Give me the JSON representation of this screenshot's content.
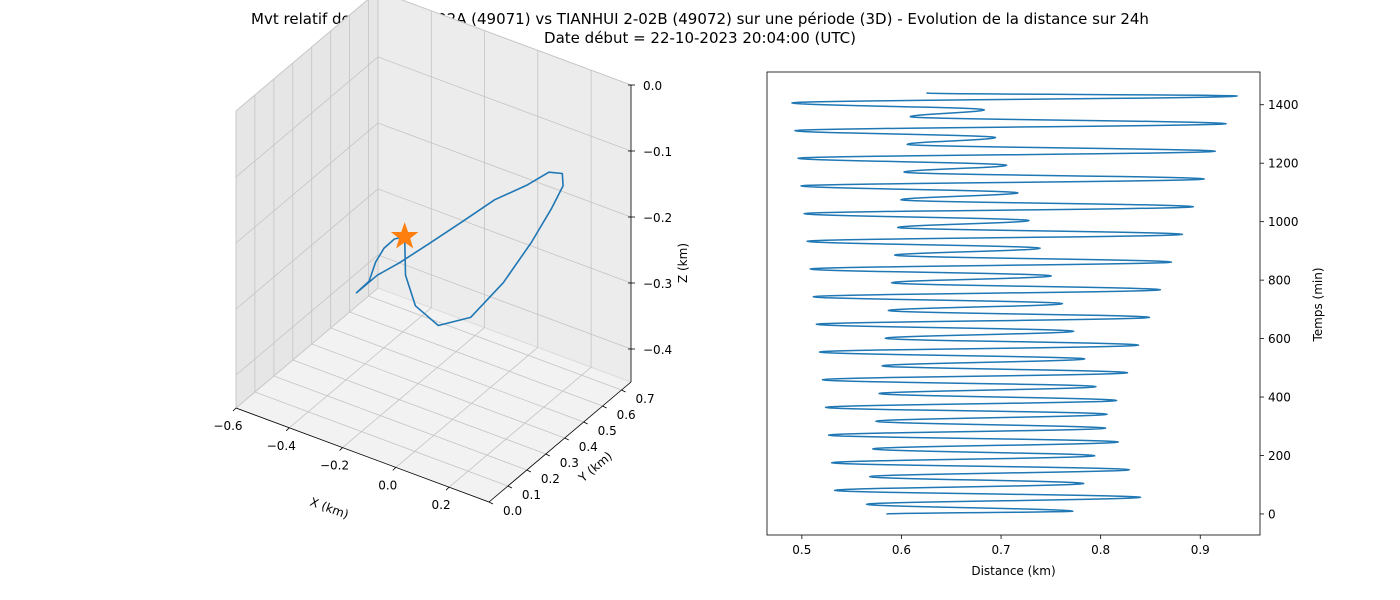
{
  "figure": {
    "title": "Mvt relatif de TIANHUI 2-02A (49071) vs TIANHUI 2-02B (49072) sur une période (3D) - Evolution de la distance sur 24h",
    "subtitle": "Date début = 22-10-2023 20:04:00 (UTC)"
  },
  "chart_data": [
    {
      "type": "line3d",
      "xlabel": "X (km)",
      "ylabel": "Y (km)",
      "zlabel": "Z (km)",
      "xlim": [
        -0.6,
        0.35
      ],
      "ylim": [
        0.0,
        0.75
      ],
      "zlim": [
        -0.45,
        0.0
      ],
      "x_ticks": [
        -0.6,
        -0.4,
        -0.2,
        0.0,
        0.2
      ],
      "x_tick_labels": [
        "−0.6",
        "−0.4",
        "−0.2",
        "0.0",
        "0.2"
      ],
      "y_ticks": [
        0.0,
        0.1,
        0.2,
        0.3,
        0.4,
        0.5,
        0.6,
        0.7
      ],
      "y_tick_labels": [
        "0.0",
        "0.1",
        "0.2",
        "0.3",
        "0.4",
        "0.5",
        "0.6",
        "0.7"
      ],
      "z_ticks": [
        -0.4,
        -0.3,
        -0.2,
        -0.1,
        0.0
      ],
      "z_tick_labels": [
        "−0.4",
        "−0.3",
        "−0.2",
        "−0.1",
        "0.0"
      ],
      "grid": true,
      "series": [
        {
          "color": "#1f77b4",
          "x": [
            -0.18,
            -0.24,
            -0.3,
            -0.36,
            -0.42,
            -0.5,
            -0.56,
            -0.58,
            -0.56,
            -0.5,
            -0.4,
            -0.28,
            -0.14,
            0.0,
            0.12,
            0.22,
            0.28,
            0.3,
            0.29,
            0.24,
            0.16,
            0.06,
            -0.04,
            -0.12,
            -0.18
          ],
          "y": [
            0.3,
            0.33,
            0.36,
            0.4,
            0.45,
            0.52,
            0.58,
            0.64,
            0.69,
            0.72,
            0.74,
            0.74,
            0.72,
            0.69,
            0.64,
            0.57,
            0.49,
            0.4,
            0.31,
            0.23,
            0.17,
            0.14,
            0.16,
            0.22,
            0.3
          ],
          "z": [
            -0.2,
            -0.22,
            -0.25,
            -0.29,
            -0.34,
            -0.38,
            -0.41,
            -0.42,
            -0.41,
            -0.39,
            -0.35,
            -0.3,
            -0.24,
            -0.19,
            -0.14,
            -0.11,
            -0.1,
            -0.11,
            -0.14,
            -0.19,
            -0.24,
            -0.26,
            -0.25,
            -0.23,
            -0.2
          ]
        }
      ],
      "marker": {
        "shape": "star",
        "color": "#ff7f0e",
        "x": -0.18,
        "y": 0.3,
        "z": -0.2
      }
    },
    {
      "type": "line",
      "xlabel": "Distance (km)",
      "ylabel": "Temps (min)",
      "xlim": [
        0.465,
        0.96
      ],
      "ylim": [
        -72,
        1512
      ],
      "x_ticks": [
        0.5,
        0.6,
        0.7,
        0.8,
        0.9
      ],
      "x_tick_labels": [
        "0.5",
        "0.6",
        "0.7",
        "0.8",
        "0.9"
      ],
      "y_ticks": [
        0,
        200,
        400,
        600,
        800,
        1000,
        1200,
        1400
      ],
      "y_tick_labels": [
        "0",
        "200",
        "400",
        "600",
        "800",
        "1000",
        "1200",
        "1400"
      ],
      "y_axis_side": "right",
      "grid": false,
      "color": "#1f77b4",
      "oscillation": {
        "period_min": 94.7,
        "duration_min": 1440,
        "start_distance": 0.585,
        "end_distance": 0.625,
        "big_max": [
          0.772,
          0.937
        ],
        "min_a": [
          0.565,
          0.612
        ],
        "mid_max": [
          0.84,
          0.672
        ],
        "min_b": [
          0.533,
          0.487
        ]
      }
    }
  ]
}
